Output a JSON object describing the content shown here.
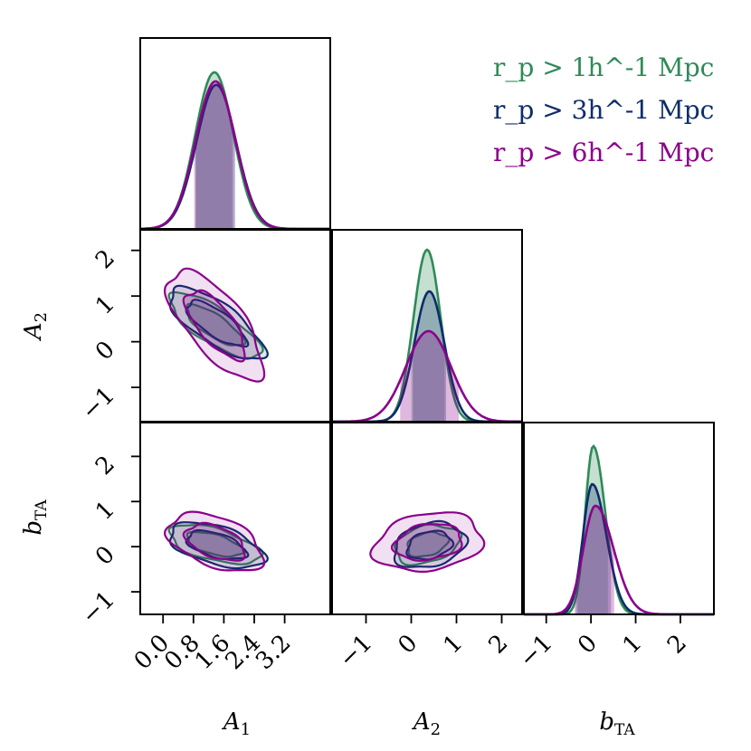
{
  "colors": {
    "green": "#2e8b57",
    "navy": "#0d2d6b",
    "purple": "#8b008b"
  },
  "legend": [
    {
      "label": "r_p > 1h^-1 Mpc",
      "color": "#2e8b57"
    },
    {
      "label": "r_p > 3h^-1 Mpc",
      "color": "#0d2d6b"
    },
    {
      "label": "r_p > 6h^-1 Mpc",
      "color": "#8b008b"
    }
  ],
  "labels": {
    "A1": "A_1",
    "A2": "A_2",
    "bTA": "b_TA"
  },
  "chart_data": {
    "type": "corner",
    "parameters": [
      "A_1",
      "A_2",
      "b_TA"
    ],
    "ranges": {
      "A_1": [
        -0.6,
        4.4
      ],
      "A_2": [
        -1.75,
        2.45
      ],
      "b_TA": [
        -1.5,
        2.75
      ]
    },
    "ticks": {
      "A_1": [
        "0.0",
        "0.8",
        "1.6",
        "2.4",
        "3.2"
      ],
      "A_2": [
        "−1",
        "0",
        "1",
        "2"
      ],
      "b_TA": [
        "−1",
        "0",
        "1",
        "2"
      ]
    },
    "tick_values": {
      "A_1": [
        0.0,
        0.8,
        1.6,
        2.4,
        3.2
      ],
      "A_2": [
        -1,
        0,
        1,
        2
      ],
      "b_TA": [
        -1,
        0,
        1,
        2
      ]
    },
    "series": [
      {
        "name": "r_p > 1h^-1 Mpc",
        "color": "#2e8b57",
        "A_1": {
          "mean": 1.35,
          "sd": 0.5,
          "peak": 0.87,
          "band": [
            0.82,
            1.85
          ]
        },
        "A_2": {
          "mean": 0.35,
          "sd": 0.3,
          "peak": 0.95,
          "band": [
            0.0,
            0.75
          ]
        },
        "b_TA": {
          "mean": 0.05,
          "sd": 0.18,
          "peak": 0.93,
          "band": [
            -0.32,
            0.4
          ]
        },
        "corr_A1_A2": -0.78,
        "corr_A1_bTA": -0.55,
        "corr_A2_bTA": 0.3
      },
      {
        "name": "r_p > 3h^-1 Mpc",
        "color": "#0d2d6b",
        "A_1": {
          "mean": 1.4,
          "sd": 0.52,
          "peak": 0.8,
          "band": [
            0.84,
            1.9
          ]
        },
        "A_2": {
          "mean": 0.4,
          "sd": 0.33,
          "peak": 0.72,
          "band": [
            0.02,
            0.8
          ]
        },
        "b_TA": {
          "mean": 0.03,
          "sd": 0.21,
          "peak": 0.72,
          "band": [
            -0.35,
            0.45
          ]
        },
        "corr_A1_A2": -0.75,
        "corr_A1_bTA": -0.5,
        "corr_A2_bTA": 0.25
      },
      {
        "name": "r_p > 6h^-1 Mpc",
        "color": "#8b008b",
        "A_1": {
          "mean": 1.38,
          "sd": 0.52,
          "peak": 0.82,
          "band": [
            0.8,
            1.88
          ]
        },
        "A_2": {
          "mean": 0.38,
          "sd": 0.5,
          "peak": 0.5,
          "band": [
            -0.25,
            1.05
          ]
        },
        "b_TA": {
          "mean": 0.1,
          "sd": 0.27,
          "peak": 0.6,
          "band": [
            -0.4,
            0.55
          ]
        },
        "corr_A1_A2": -0.7,
        "corr_A1_bTA": -0.45,
        "corr_A2_bTA": 0.2
      }
    ]
  }
}
